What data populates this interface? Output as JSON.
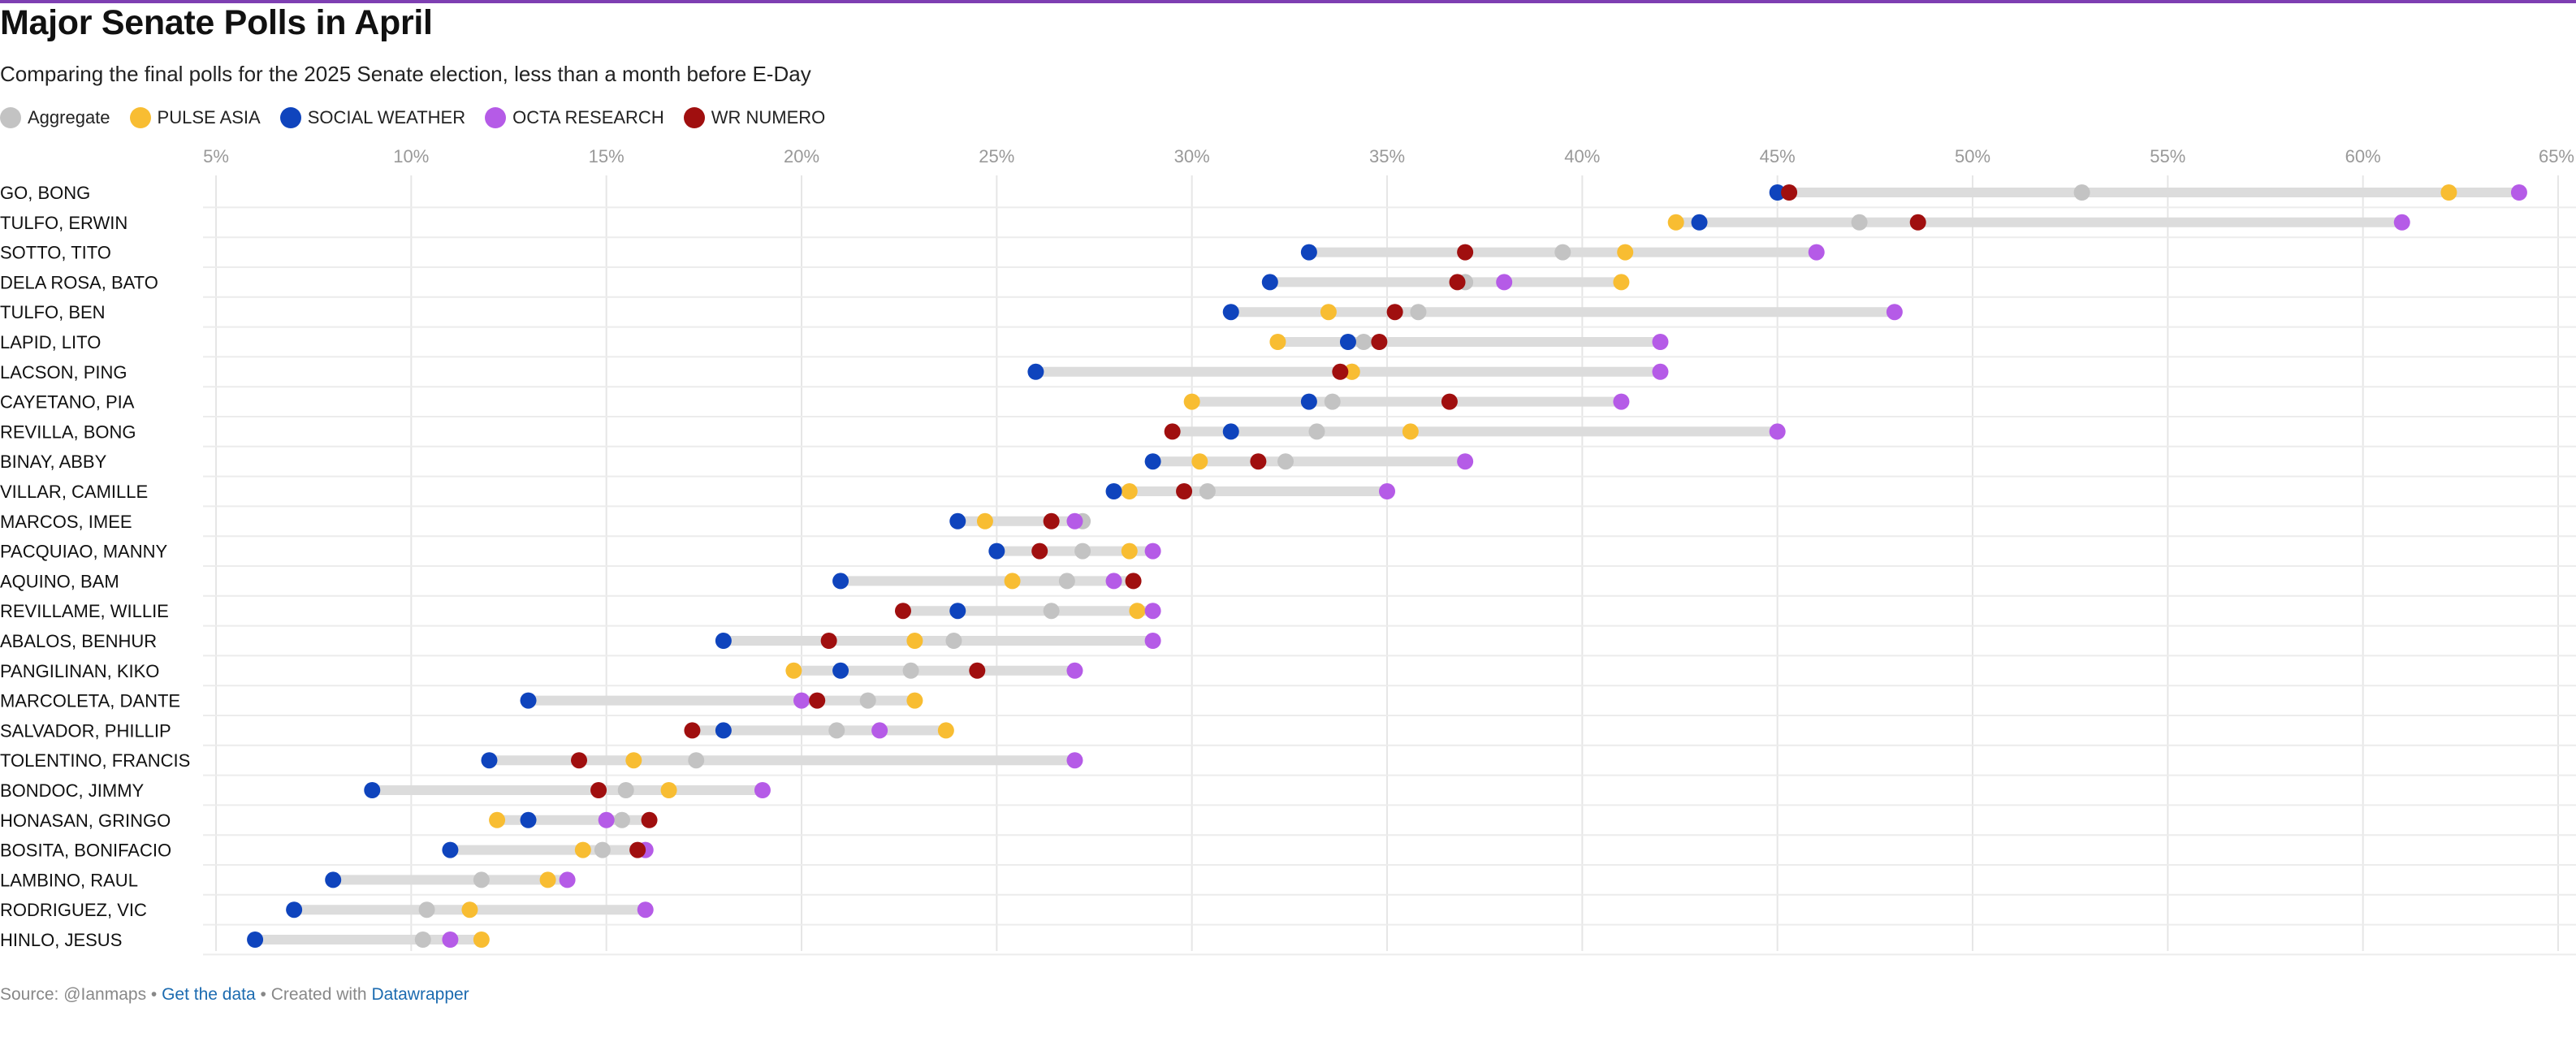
{
  "chart_data": {
    "type": "scatter",
    "title": "Major Senate Polls in April",
    "subtitle": "Comparing the final polls for the 2025 Senate election, less than a month before E-Day",
    "x_ticks": [
      "5%",
      "10%",
      "15%",
      "20%",
      "25%",
      "30%",
      "35%",
      "40%",
      "45%",
      "50%",
      "55%",
      "60%",
      "65%"
    ],
    "x_range": [
      5,
      65
    ],
    "series": [
      {
        "name": "Aggregate",
        "color": "#c3c3c3"
      },
      {
        "name": "PULSE ASIA",
        "color": "#f8bd32"
      },
      {
        "name": "SOCIAL WEATHER",
        "color": "#0f44bd"
      },
      {
        "name": "OCTA RESEARCH",
        "color": "#b55be7"
      },
      {
        "name": "WR NUMERO",
        "color": "#a00f0f"
      }
    ],
    "rows": [
      {
        "name": "GO, BONG",
        "values": [
          52.8,
          62.2,
          45.0,
          64.0,
          45.3
        ]
      },
      {
        "name": "TULFO, ERWIN",
        "values": [
          47.1,
          42.4,
          43.0,
          61.0,
          48.6
        ]
      },
      {
        "name": "SOTTO, TITO",
        "values": [
          39.5,
          41.1,
          33.0,
          46.0,
          37.0
        ]
      },
      {
        "name": "DELA ROSA, BATO",
        "values": [
          37.0,
          41.0,
          32.0,
          38.0,
          36.8
        ]
      },
      {
        "name": "TULFO, BEN",
        "values": [
          35.8,
          33.5,
          31.0,
          48.0,
          35.2
        ]
      },
      {
        "name": "LAPID, LITO",
        "values": [
          34.4,
          32.2,
          34.0,
          42.0,
          34.8
        ]
      },
      {
        "name": "LACSON, PING",
        "values": [
          34.1,
          34.1,
          26.0,
          42.0,
          33.8
        ]
      },
      {
        "name": "CAYETANO, PIA",
        "values": [
          33.6,
          30.0,
          33.0,
          41.0,
          36.6
        ]
      },
      {
        "name": "REVILLA, BONG",
        "values": [
          33.2,
          35.6,
          31.0,
          45.0,
          29.5
        ]
      },
      {
        "name": "BINAY, ABBY",
        "values": [
          32.4,
          30.2,
          29.0,
          37.0,
          31.7
        ]
      },
      {
        "name": "VILLAR, CAMILLE",
        "values": [
          30.4,
          28.4,
          28.0,
          35.0,
          29.8
        ]
      },
      {
        "name": "MARCOS, IMEE",
        "values": [
          27.2,
          24.7,
          24.0,
          27.0,
          26.4
        ]
      },
      {
        "name": "PACQUIAO, MANNY",
        "values": [
          27.2,
          28.4,
          25.0,
          29.0,
          26.1
        ]
      },
      {
        "name": "AQUINO, BAM",
        "values": [
          26.8,
          25.4,
          21.0,
          28.0,
          28.5
        ]
      },
      {
        "name": "REVILLAME, WILLIE",
        "values": [
          26.4,
          28.6,
          24.0,
          29.0,
          22.6
        ]
      },
      {
        "name": "ABALOS, BENHUR",
        "values": [
          23.9,
          22.9,
          18.0,
          29.0,
          20.7
        ]
      },
      {
        "name": "PANGILINAN, KIKO",
        "values": [
          22.8,
          19.8,
          21.0,
          27.0,
          24.5
        ]
      },
      {
        "name": "MARCOLETA, DANTE",
        "values": [
          21.7,
          22.9,
          13.0,
          20.0,
          20.4
        ]
      },
      {
        "name": "SALVADOR, PHILLIP",
        "values": [
          20.9,
          23.7,
          18.0,
          22.0,
          17.2
        ]
      },
      {
        "name": "TOLENTINO, FRANCIS",
        "values": [
          17.3,
          15.7,
          12.0,
          27.0,
          14.3
        ]
      },
      {
        "name": "BONDOC, JIMMY",
        "values": [
          15.5,
          16.6,
          9.0,
          19.0,
          14.8
        ]
      },
      {
        "name": "HONASAN, GRINGO",
        "values": [
          15.4,
          12.2,
          13.0,
          15.0,
          16.1
        ]
      },
      {
        "name": "BOSITA, BONIFACIO",
        "values": [
          14.9,
          14.4,
          11.0,
          16.0,
          15.8
        ]
      },
      {
        "name": "LAMBINO, RAUL",
        "values": [
          11.8,
          13.5,
          8.0,
          14.0,
          null
        ]
      },
      {
        "name": "RODRIGUEZ, VIC",
        "values": [
          10.4,
          11.5,
          7.0,
          16.0,
          null
        ]
      },
      {
        "name": "HINLO, JESUS",
        "values": [
          10.3,
          11.8,
          6.0,
          11.0,
          null
        ]
      }
    ]
  },
  "footer": {
    "source": "Source: @Ianmaps • ",
    "get_data": "Get the data",
    "created_with": " • Created with ",
    "datawrapper": "Datawrapper"
  }
}
